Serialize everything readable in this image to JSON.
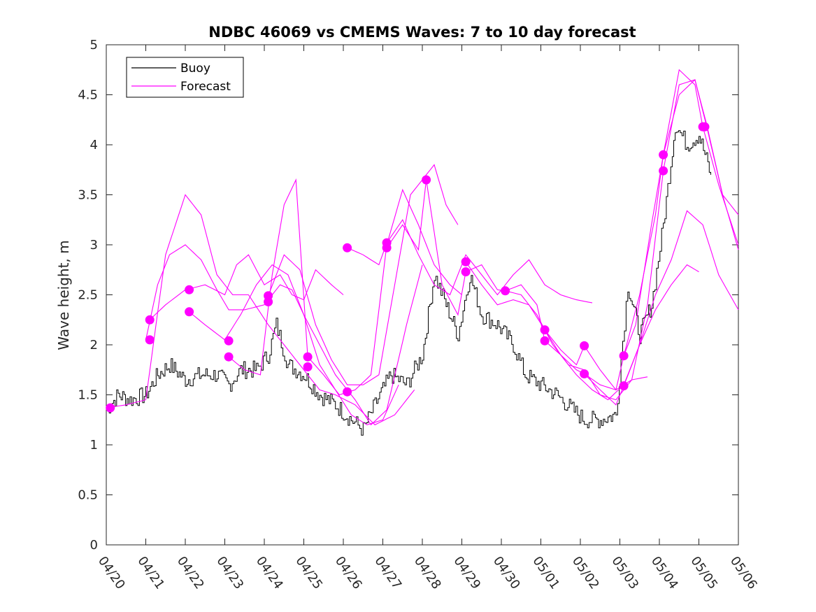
{
  "chart_data": {
    "type": "line",
    "title": "NDBC 46069 vs CMEMS Waves: 7 to 10 day forecast",
    "xlabel": "",
    "ylabel": "Wave height, m",
    "x_unit": "days since 04/20",
    "xlim": [
      0,
      16
    ],
    "ylim": [
      0,
      5
    ],
    "yticks": [
      0,
      0.5,
      1,
      1.5,
      2,
      2.5,
      3,
      3.5,
      4,
      4.5,
      5
    ],
    "ytick_labels": [
      "0",
      "0.5",
      "1",
      "1.5",
      "2",
      "2.5",
      "3",
      "3.5",
      "4",
      "4.5",
      "5"
    ],
    "xtick_labels": [
      "04/20",
      "04/21",
      "04/22",
      "04/23",
      "04/24",
      "04/25",
      "04/26",
      "04/27",
      "04/28",
      "04/29",
      "04/30",
      "05/01",
      "05/02",
      "05/03",
      "05/04",
      "05/05",
      "05/06"
    ],
    "grid": false,
    "legend": {
      "placement": "top-left",
      "entries": [
        "Buoy",
        "Forecast"
      ]
    },
    "colors": {
      "buoy": "#000000",
      "forecast": "#ff00ff"
    },
    "buoy": {
      "name": "Buoy",
      "x": [
        0,
        0.3,
        0.6,
        1.0,
        1.3,
        1.6,
        2.0,
        2.4,
        2.8,
        3.1,
        3.4,
        3.8,
        4.1,
        4.3,
        4.6,
        5.0,
        5.4,
        5.8,
        6.2,
        6.5,
        6.8,
        7.2,
        7.6,
        8.0,
        8.3,
        8.6,
        8.9,
        9.2,
        9.5,
        9.9,
        10.3,
        10.6,
        11.0,
        11.4,
        11.8,
        12.1,
        12.5,
        12.9,
        13.2,
        13.5,
        13.8,
        14.1,
        14.4,
        14.7,
        15.0,
        15.3
      ],
      "y": [
        1.35,
        1.5,
        1.45,
        1.5,
        1.7,
        1.8,
        1.65,
        1.7,
        1.7,
        1.6,
        1.75,
        1.75,
        1.9,
        2.2,
        1.8,
        1.7,
        1.5,
        1.4,
        1.25,
        1.15,
        1.4,
        1.7,
        1.6,
        1.9,
        2.7,
        2.4,
        2.1,
        2.7,
        2.3,
        2.2,
        2.0,
        1.7,
        1.6,
        1.5,
        1.35,
        1.25,
        1.25,
        1.3,
        2.6,
        2.1,
        2.4,
        3.2,
        4.2,
        4.0,
        4.1,
        3.7
      ]
    },
    "forecast_runs": [
      {
        "x": [
          0,
          0.5,
          1.0,
          1.5,
          2.0,
          2.4,
          2.8,
          3.2,
          3.6,
          4.1,
          4.5,
          5.0,
          5.4,
          5.8,
          6.3,
          6.8,
          7.3,
          7.8
        ],
        "y": [
          1.37,
          1.4,
          1.45,
          2.9,
          3.5,
          3.3,
          2.7,
          2.5,
          2.5,
          2.2,
          2.0,
          1.75,
          1.55,
          1.5,
          1.4,
          1.2,
          1.3,
          1.55
        ]
      },
      {
        "x": [
          1.0,
          1.3,
          1.6,
          2.0,
          2.4,
          2.8,
          3.1,
          3.5,
          4.0,
          4.4,
          4.7,
          5.0,
          5.4,
          5.8,
          6.3,
          6.7,
          7.1,
          7.6,
          8.0
        ],
        "y": [
          2.05,
          2.6,
          2.9,
          3.0,
          2.85,
          2.55,
          2.35,
          2.35,
          2.4,
          2.6,
          2.55,
          2.3,
          2.0,
          1.7,
          1.45,
          1.2,
          1.35,
          2.2,
          2.8
        ]
      },
      {
        "x": [
          1.1,
          1.5,
          2.0,
          2.5,
          3.0,
          3.3,
          3.6,
          4.0,
          4.4,
          4.7,
          5.0,
          5.3,
          5.7,
          6.0
        ],
        "y": [
          2.25,
          2.4,
          2.55,
          2.6,
          2.5,
          2.8,
          2.9,
          2.6,
          2.7,
          2.5,
          2.45,
          2.75,
          2.6,
          2.5
        ]
      },
      {
        "x": [
          2.1,
          2.5,
          3.0,
          3.4,
          3.8,
          4.2,
          4.6,
          5.0,
          5.4,
          5.8,
          6.2,
          6.6,
          7.0,
          7.4
        ],
        "y": [
          2.33,
          2.2,
          2.05,
          2.3,
          2.6,
          2.8,
          2.7,
          2.3,
          1.8,
          1.55,
          1.3,
          1.2,
          1.25,
          1.6
        ]
      },
      {
        "x": [
          3.1,
          3.5,
          3.9,
          4.2,
          4.5,
          4.8,
          5.1,
          5.5,
          5.9,
          6.3,
          6.7,
          7.1,
          7.5,
          7.9,
          8.3,
          8.7,
          9.0
        ],
        "y": [
          1.88,
          1.75,
          1.7,
          2.7,
          3.4,
          3.65,
          1.88,
          1.7,
          1.5,
          1.55,
          1.7,
          3.0,
          3.55,
          3.2,
          2.8,
          2.6,
          2.5
        ]
      },
      {
        "x": [
          4.1,
          4.5,
          4.9,
          5.3,
          5.7,
          6.1,
          6.5,
          6.9,
          7.3,
          7.7,
          8.0,
          8.3,
          8.6,
          8.9
        ],
        "y": [
          2.49,
          2.9,
          2.75,
          2.2,
          1.85,
          1.6,
          1.6,
          1.7,
          2.6,
          3.5,
          3.65,
          3.8,
          3.4,
          3.2
        ]
      },
      {
        "x": [
          6.1,
          6.5,
          6.9,
          7.1,
          7.5,
          7.9,
          8.3,
          8.7,
          9.1,
          9.5,
          9.9,
          10.3,
          10.7,
          11.1,
          11.5,
          11.9,
          12.3
        ],
        "y": [
          2.97,
          2.9,
          2.8,
          3.02,
          3.25,
          2.9,
          2.6,
          2.5,
          2.9,
          2.7,
          2.5,
          2.7,
          2.85,
          2.6,
          2.5,
          2.45,
          2.42
        ]
      },
      {
        "x": [
          7.1,
          7.5,
          7.9,
          8.1,
          8.5,
          8.9,
          9.1,
          9.5,
          9.9,
          10.1,
          10.5,
          10.9,
          11.1,
          11.5,
          11.9,
          12.1,
          12.5,
          12.9,
          13.3,
          13.7
        ],
        "y": [
          2.97,
          3.2,
          2.95,
          3.65,
          2.6,
          2.3,
          2.73,
          2.8,
          2.55,
          2.54,
          2.6,
          2.4,
          2.04,
          1.9,
          1.75,
          1.71,
          1.6,
          1.55,
          1.65,
          1.68
        ]
      },
      {
        "x": [
          9.1,
          9.5,
          9.9,
          10.3,
          10.7,
          11.1,
          11.5,
          11.9,
          12.1,
          12.5,
          12.9,
          13.1,
          13.4,
          13.8,
          14.1,
          14.5,
          14.9,
          15.1,
          15.5,
          16.0
        ],
        "y": [
          2.83,
          2.6,
          2.4,
          2.45,
          2.4,
          2.15,
          1.95,
          1.8,
          1.99,
          1.75,
          1.55,
          1.89,
          2.2,
          3.2,
          3.9,
          4.75,
          4.6,
          4.18,
          3.6,
          3.0
        ]
      },
      {
        "x": [
          10.1,
          10.5,
          10.9,
          11.3,
          11.7,
          12.1,
          12.5,
          12.9,
          13.3,
          13.7,
          14.1,
          14.5,
          14.9,
          15.2,
          15.6,
          16.0
        ],
        "y": [
          2.54,
          2.5,
          2.3,
          2.0,
          1.8,
          1.75,
          1.5,
          1.45,
          1.65,
          2.4,
          3.74,
          4.6,
          4.65,
          4.2,
          3.5,
          3.3
        ]
      },
      {
        "x": [
          11.1,
          11.5,
          11.9,
          12.3,
          12.7,
          13.1,
          13.5,
          13.9,
          14.3,
          14.7,
          15.1,
          15.5,
          16.0
        ],
        "y": [
          2.15,
          1.9,
          1.7,
          1.55,
          1.45,
          1.6,
          2.0,
          2.5,
          2.85,
          3.34,
          3.2,
          2.7,
          2.35
        ]
      },
      {
        "x": [
          12.1,
          12.5,
          12.9,
          13.1,
          13.5,
          13.9,
          14.3,
          14.7,
          15.0
        ],
        "y": [
          1.71,
          1.55,
          1.4,
          1.59,
          2.0,
          2.35,
          2.6,
          2.8,
          2.73
        ]
      },
      {
        "x": [
          13.1,
          13.5,
          13.9,
          14.1,
          14.5,
          14.9,
          15.2,
          15.6,
          16.0
        ],
        "y": [
          1.89,
          2.5,
          3.3,
          3.9,
          4.5,
          4.65,
          4.18,
          3.5,
          2.95
        ]
      }
    ],
    "forecast_points": [
      [
        0.1,
        1.37
      ],
      [
        1.1,
        2.25
      ],
      [
        1.1,
        2.05
      ],
      [
        2.1,
        2.55
      ],
      [
        2.1,
        2.33
      ],
      [
        3.1,
        2.04
      ],
      [
        3.1,
        1.88
      ],
      [
        4.1,
        2.49
      ],
      [
        4.1,
        2.43
      ],
      [
        5.1,
        1.88
      ],
      [
        5.1,
        1.78
      ],
      [
        6.1,
        2.97
      ],
      [
        6.1,
        1.53
      ],
      [
        7.1,
        3.02
      ],
      [
        7.1,
        2.97
      ],
      [
        8.1,
        3.65
      ],
      [
        9.1,
        2.83
      ],
      [
        9.1,
        2.73
      ],
      [
        10.1,
        2.54
      ],
      [
        11.1,
        2.15
      ],
      [
        11.1,
        2.04
      ],
      [
        12.1,
        1.99
      ],
      [
        12.1,
        1.71
      ],
      [
        13.1,
        1.89
      ],
      [
        13.1,
        1.59
      ],
      [
        14.1,
        3.9
      ],
      [
        14.1,
        3.74
      ],
      [
        15.1,
        4.18
      ],
      [
        15.15,
        4.18
      ]
    ]
  }
}
